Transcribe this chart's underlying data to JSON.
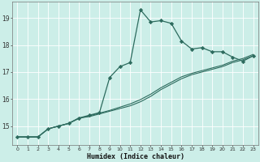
{
  "title": "",
  "xlabel": "Humidex (Indice chaleur)",
  "ylabel": "",
  "bg_color": "#cceee8",
  "grid_color": "#ffffff",
  "line_color": "#2d6b5e",
  "xlim": [
    -0.5,
    23.5
  ],
  "ylim": [
    14.3,
    19.6
  ],
  "yticks": [
    15,
    16,
    17,
    18,
    19
  ],
  "ytick_labels": [
    "15",
    "16",
    "17",
    "18",
    "19"
  ],
  "xticks": [
    0,
    1,
    2,
    3,
    4,
    5,
    6,
    7,
    8,
    9,
    10,
    11,
    12,
    13,
    14,
    15,
    16,
    17,
    18,
    19,
    20,
    21,
    22,
    23
  ],
  "series": [
    {
      "x": [
        0,
        1,
        2,
        3,
        4,
        5,
        6,
        7,
        8,
        9,
        10,
        11,
        12,
        13,
        14,
        15,
        16,
        17,
        18,
        19,
        20,
        21,
        22,
        23
      ],
      "y": [
        14.6,
        14.6,
        14.6,
        14.9,
        15.0,
        15.1,
        15.3,
        15.4,
        15.5,
        16.8,
        17.2,
        17.35,
        19.3,
        18.85,
        18.9,
        18.8,
        18.15,
        17.85,
        17.9,
        17.75,
        17.75,
        17.55,
        17.4,
        17.6
      ],
      "marker": "D",
      "markersize": 2.2,
      "linewidth": 0.9,
      "has_marker": true
    },
    {
      "x": [
        0,
        1,
        2,
        3,
        4,
        5,
        6,
        7,
        8,
        9,
        10,
        11,
        12,
        13,
        14,
        15,
        16,
        17,
        18,
        19,
        20,
        21,
        22,
        23
      ],
      "y": [
        14.6,
        14.6,
        14.6,
        14.9,
        15.0,
        15.1,
        15.3,
        15.35,
        15.45,
        15.55,
        15.65,
        15.75,
        15.9,
        16.1,
        16.35,
        16.55,
        16.75,
        16.9,
        17.0,
        17.1,
        17.2,
        17.35,
        17.45,
        17.6
      ],
      "marker": null,
      "markersize": 0,
      "linewidth": 0.8,
      "has_marker": false
    },
    {
      "x": [
        0,
        1,
        2,
        3,
        4,
        5,
        6,
        7,
        8,
        9,
        10,
        11,
        12,
        13,
        14,
        15,
        16,
        17,
        18,
        19,
        20,
        21,
        22,
        23
      ],
      "y": [
        14.6,
        14.6,
        14.6,
        14.9,
        15.0,
        15.1,
        15.28,
        15.38,
        15.48,
        15.58,
        15.7,
        15.82,
        15.98,
        16.18,
        16.42,
        16.62,
        16.82,
        16.95,
        17.05,
        17.15,
        17.25,
        17.4,
        17.5,
        17.65
      ],
      "marker": null,
      "markersize": 0,
      "linewidth": 0.8,
      "has_marker": false
    }
  ]
}
